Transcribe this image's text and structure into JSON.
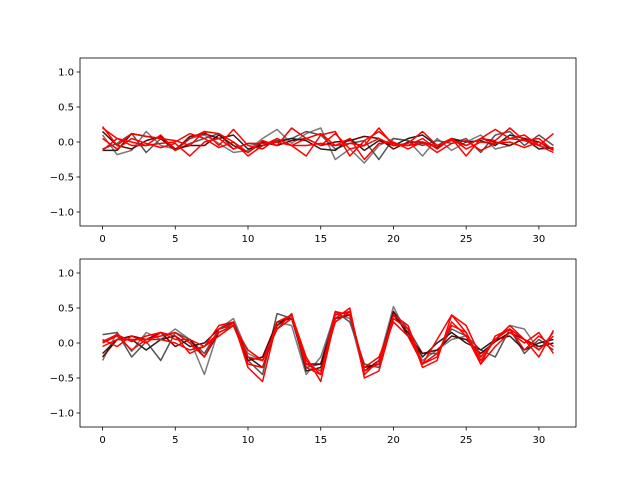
{
  "chart_data": [
    {
      "type": "line",
      "ylim": [
        -1.2,
        1.2
      ],
      "xlim": [
        -1.55,
        32.55
      ],
      "xticks": [
        0,
        5,
        10,
        15,
        20,
        25,
        30
      ],
      "yticks": [
        -1.0,
        -0.5,
        0.0,
        0.5,
        1.0
      ],
      "x": [
        0,
        1,
        2,
        3,
        4,
        5,
        6,
        7,
        8,
        9,
        10,
        11,
        12,
        13,
        14,
        15,
        16,
        17,
        18,
        19,
        20,
        21,
        22,
        23,
        24,
        25,
        26,
        27,
        28,
        29,
        30,
        31
      ],
      "series": [
        {
          "color": "#7a7a7a",
          "values": [
            0.1,
            -0.18,
            -0.12,
            0.15,
            -0.05,
            -0.1,
            0.05,
            0.1,
            -0.02,
            -0.15,
            -0.12,
            0.05,
            0.18,
            -0.02,
            0.12,
            0.2,
            -0.25,
            -0.1,
            -0.3,
            -0.05,
            0.05,
            0.02,
            -0.2,
            0.05,
            -0.12,
            0.0,
            0.1,
            -0.1,
            -0.05,
            0.05,
            -0.05,
            -0.1
          ]
        },
        {
          "color": "#555555",
          "values": [
            -0.1,
            -0.02,
            0.12,
            -0.15,
            0.05,
            -0.12,
            -0.02,
            0.05,
            0.12,
            -0.1,
            -0.02,
            -0.05,
            0.02,
            0.05,
            0.15,
            0.1,
            -0.1,
            -0.02,
            0.02,
            -0.25,
            0.05,
            0.02,
            -0.05,
            0.02,
            -0.02,
            0.05,
            -0.15,
            0.1,
            0.15,
            -0.05,
            0.1,
            -0.05
          ]
        },
        {
          "color": "#222222",
          "values": [
            -0.12,
            -0.12,
            0.12,
            0.08,
            0.05,
            -0.12,
            0.08,
            0.12,
            0.05,
            0.1,
            -0.1,
            -0.05,
            0.0,
            0.05,
            0.02,
            -0.1,
            -0.12,
            0.05,
            -0.12,
            0.02,
            -0.05,
            0.05,
            0.1,
            -0.05,
            0.05,
            0.0,
            0.02,
            -0.05,
            0.1,
            0.05,
            -0.1,
            -0.08
          ]
        },
        {
          "color": "#660000",
          "values": [
            0.15,
            -0.05,
            -0.1,
            0.02,
            0.08,
            -0.1,
            -0.05,
            -0.05,
            0.1,
            -0.05,
            -0.15,
            0.0,
            -0.05,
            0.02,
            0.05,
            -0.05,
            0.0,
            0.02,
            0.08,
            0.05,
            -0.1,
            0.0,
            0.0,
            -0.08,
            0.05,
            -0.05,
            0.05,
            0.0,
            -0.05,
            0.05,
            0.0,
            -0.12
          ]
        },
        {
          "color": "#ff0000",
          "values": [
            0.22,
            -0.05,
            0.12,
            0.08,
            0.05,
            0.02,
            -0.05,
            0.15,
            0.12,
            0.0,
            -0.15,
            0.02,
            -0.05,
            0.2,
            0.05,
            -0.05,
            0.12,
            -0.1,
            -0.05,
            0.2,
            -0.05,
            -0.02,
            0.15,
            -0.05,
            0.02,
            -0.05,
            0.05,
            0.02,
            0.2,
            0.02,
            -0.05,
            0.12
          ]
        },
        {
          "color": "#ff0000",
          "values": [
            0.2,
            0.05,
            -0.05,
            -0.05,
            0.1,
            -0.12,
            0.05,
            0.15,
            -0.05,
            0.18,
            -0.05,
            -0.1,
            0.05,
            -0.05,
            -0.2,
            0.1,
            0.15,
            -0.2,
            0.02,
            0.15,
            -0.02,
            -0.05,
            0.05,
            -0.1,
            0.05,
            -0.2,
            0.05,
            0.18,
            0.05,
            0.1,
            -0.05,
            -0.15
          ]
        },
        {
          "color": "#ff0000",
          "values": [
            -0.12,
            0.05,
            0.0,
            -0.05,
            -0.02,
            0.0,
            0.12,
            0.05,
            -0.08,
            0.0,
            -0.2,
            -0.05,
            0.05,
            -0.05,
            0.05,
            0.12,
            -0.05,
            0.05,
            -0.25,
            -0.02,
            0.0,
            -0.1,
            0.0,
            -0.15,
            -0.02,
            0.02,
            -0.12,
            -0.02,
            0.0,
            -0.08,
            0.0,
            -0.1
          ]
        },
        {
          "color": "#ff0000",
          "values": [
            0.05,
            -0.1,
            0.05,
            -0.02,
            -0.08,
            -0.02,
            -0.2,
            0.0,
            0.05,
            -0.1,
            -0.02,
            -0.02,
            0.0,
            -0.05,
            -0.05,
            -0.02,
            -0.05,
            -0.02,
            -0.05,
            0.05,
            -0.05,
            -0.05,
            -0.02,
            -0.05,
            0.05,
            -0.1,
            0.0,
            -0.02,
            0.05,
            0.02,
            0.05,
            -0.12
          ]
        }
      ]
    },
    {
      "type": "line",
      "ylim": [
        -1.2,
        1.2
      ],
      "xlim": [
        -1.55,
        32.55
      ],
      "xticks": [
        0,
        5,
        10,
        15,
        20,
        25,
        30
      ],
      "yticks": [
        -1.0,
        -0.5,
        0.0,
        0.5,
        1.0
      ],
      "x": [
        0,
        1,
        2,
        3,
        4,
        5,
        6,
        7,
        8,
        9,
        10,
        11,
        12,
        13,
        14,
        15,
        16,
        17,
        18,
        19,
        20,
        21,
        22,
        23,
        24,
        25,
        26,
        27,
        28,
        29,
        30,
        31
      ],
      "series": [
        {
          "color": "#7a7a7a",
          "values": [
            -0.25,
            0.15,
            -0.12,
            0.15,
            0.05,
            0.2,
            0.05,
            -0.45,
            0.2,
            0.35,
            -0.15,
            -0.25,
            0.3,
            0.25,
            -0.45,
            -0.2,
            0.42,
            0.35,
            -0.45,
            -0.25,
            0.52,
            0.1,
            -0.25,
            -0.1,
            0.05,
            0.1,
            -0.2,
            0.05,
            0.25,
            0.2,
            -0.1,
            0.15
          ]
        },
        {
          "color": "#555555",
          "values": [
            0.12,
            0.15,
            -0.2,
            0.02,
            -0.25,
            0.15,
            0.05,
            -0.15,
            0.2,
            0.25,
            -0.25,
            -0.45,
            0.42,
            0.35,
            -0.35,
            -0.3,
            0.45,
            0.3,
            -0.3,
            -0.35,
            0.45,
            0.2,
            -0.15,
            -0.15,
            0.2,
            0.1,
            -0.1,
            -0.2,
            0.2,
            -0.15,
            0.05,
            -0.1
          ]
        },
        {
          "color": "#222222",
          "values": [
            -0.15,
            0.05,
            0.05,
            -0.1,
            0.05,
            0.1,
            -0.05,
            0.0,
            0.2,
            0.3,
            -0.2,
            -0.35,
            0.25,
            0.4,
            -0.4,
            -0.35,
            0.3,
            0.45,
            -0.4,
            -0.25,
            0.4,
            0.15,
            -0.2,
            0.0,
            0.15,
            0.0,
            -0.1,
            0.05,
            0.1,
            -0.1,
            0.0,
            0.05
          ]
        },
        {
          "color": "#660000",
          "values": [
            -0.2,
            0.05,
            0.1,
            0.05,
            0.15,
            -0.05,
            0.05,
            -0.2,
            0.15,
            0.25,
            -0.25,
            -0.2,
            0.3,
            0.35,
            -0.3,
            -0.3,
            0.35,
            0.4,
            -0.35,
            -0.3,
            0.45,
            0.1,
            -0.15,
            -0.1,
            0.1,
            0.05,
            -0.15,
            0.02,
            0.15,
            0.05,
            -0.05,
            0.0
          ]
        },
        {
          "color": "#ff0000",
          "values": [
            0.05,
            -0.05,
            0.1,
            0.0,
            0.15,
            0.1,
            -0.15,
            -0.05,
            0.25,
            0.3,
            -0.35,
            -0.55,
            0.3,
            0.4,
            -0.2,
            -0.55,
            0.35,
            0.5,
            -0.5,
            -0.4,
            0.35,
            0.2,
            -0.35,
            -0.25,
            0.4,
            0.25,
            -0.2,
            0.05,
            0.25,
            0.05,
            -0.2,
            0.18
          ]
        },
        {
          "color": "#ff0000",
          "values": [
            0.02,
            0.12,
            0.02,
            0.1,
            0.15,
            0.05,
            0.05,
            -0.05,
            0.15,
            0.25,
            -0.1,
            -0.25,
            0.2,
            0.35,
            -0.25,
            -0.45,
            0.4,
            0.45,
            -0.4,
            -0.3,
            0.4,
            0.25,
            -0.3,
            0.05,
            0.4,
            0.15,
            -0.3,
            -0.05,
            0.15,
            0.0,
            0.15,
            -0.15
          ]
        },
        {
          "color": "#ff0000",
          "values": [
            0.0,
            0.1,
            -0.1,
            0.05,
            0.1,
            0.15,
            0.0,
            -0.2,
            0.2,
            0.28,
            -0.3,
            -0.35,
            0.3,
            0.4,
            -0.35,
            -0.45,
            0.45,
            0.4,
            -0.35,
            -0.2,
            0.3,
            0.1,
            -0.3,
            -0.2,
            0.3,
            0.1,
            -0.3,
            0.1,
            0.2,
            -0.1,
            0.1,
            -0.05
          ]
        },
        {
          "color": "#ff0000",
          "values": [
            -0.05,
            0.05,
            0.05,
            0.05,
            0.05,
            0.0,
            -0.1,
            -0.05,
            0.1,
            0.25,
            -0.2,
            -0.25,
            0.2,
            0.42,
            -0.3,
            -0.4,
            0.3,
            0.45,
            -0.45,
            -0.25,
            0.3,
            0.1,
            -0.3,
            -0.15,
            0.25,
            0.15,
            -0.25,
            0.05,
            0.2,
            0.05,
            -0.1,
            0.1
          ]
        }
      ]
    }
  ]
}
